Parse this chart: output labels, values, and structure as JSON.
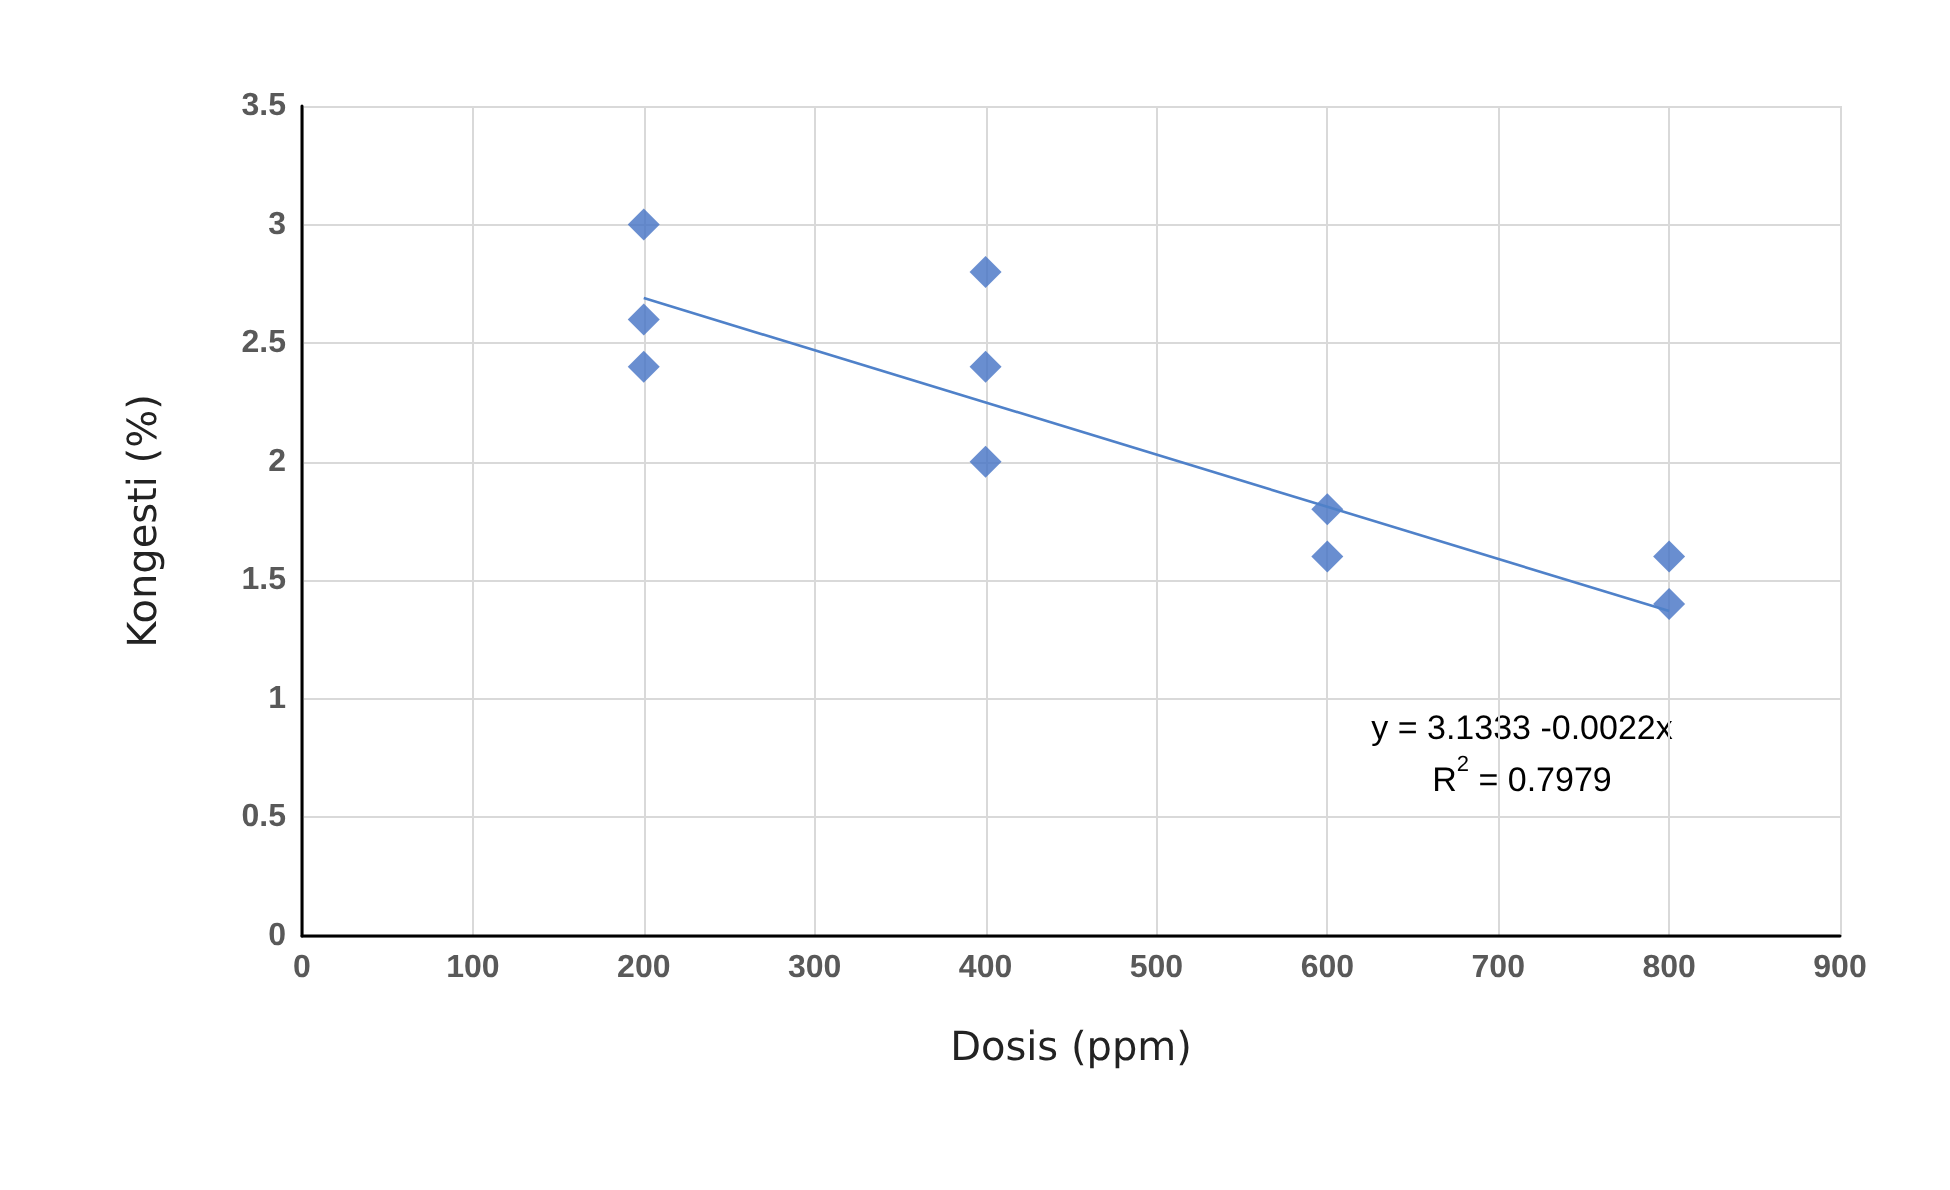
{
  "chart_data": {
    "type": "scatter",
    "xlabel": "Dosis (ppm)",
    "ylabel": "Kongesti (%)",
    "series": [
      {
        "color": "#4472c4",
        "x": [
          200,
          200,
          200,
          400,
          400,
          400,
          600,
          600,
          800,
          800
        ],
        "values": [
          3,
          2.6,
          2.4,
          2.8,
          2.4,
          2,
          1.8,
          1.6,
          1.6,
          1.4
        ]
      },
      {
        "type": "line",
        "marker": "none",
        "color": "#4f81c9",
        "x": [
          200,
          800
        ],
        "values": [
          2.69,
          1.37
        ]
      }
    ],
    "marker": "diamond",
    "xlim": [
      0,
      900
    ],
    "xticks": [
      0,
      100,
      200,
      300,
      400,
      500,
      600,
      700,
      800,
      900
    ],
    "ylim": [
      0,
      3.5
    ],
    "yticks": [
      0,
      0.5,
      1,
      1.5,
      2,
      2.5,
      3,
      3.5
    ],
    "grid": true,
    "annotations": [
      "y = 3.1333 -0.0022x",
      "R$^{2}$ = 0.7979"
    ]
  }
}
